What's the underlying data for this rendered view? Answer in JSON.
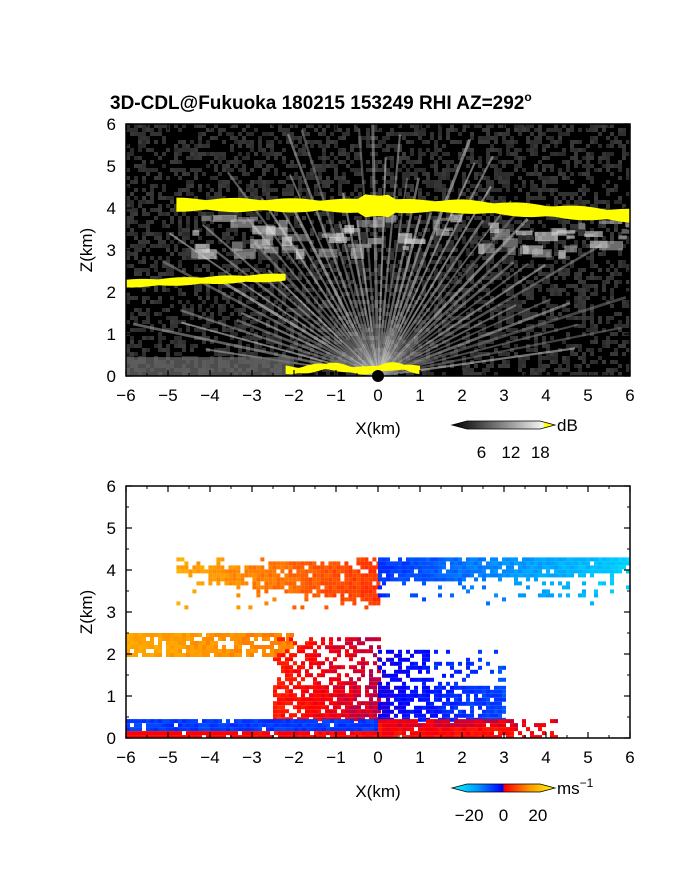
{
  "title": {
    "text": "3D-CDL@Fukuoka 180215 153249 RHI AZ=292",
    "sup": "o"
  },
  "colors": {
    "yellow": "#ffff00",
    "noise_dark": "#1c1c1c",
    "background_panel": "#000000"
  },
  "chart_data": [
    {
      "type": "heatmap",
      "name": "reflectivity-panel",
      "quantity": "backscatter intensity",
      "xlabel": "X(km)",
      "ylabel": "Z(km)",
      "xlim": [
        -6,
        6
      ],
      "ylim": [
        0,
        6
      ],
      "xticks": [
        -6,
        -5,
        -4,
        -3,
        -2,
        -1,
        0,
        1,
        2,
        3,
        4,
        5,
        6
      ],
      "yticks": [
        0,
        1,
        2,
        3,
        4,
        5,
        6
      ],
      "colorscale": [
        "#000000",
        "#3a3a3a",
        "#777777",
        "#b5b5b5",
        "#eeeeee",
        "#ffff00"
      ],
      "colorbar": {
        "unit": "dB",
        "ticks": [
          "6",
          "12",
          "18"
        ],
        "range": [
          0,
          21
        ]
      },
      "layers": [
        {
          "feature": "upper cloud layer",
          "x_range": [
            -4.8,
            6.0
          ],
          "z_center": 4.0,
          "z_thickness": 0.3,
          "value": "> 18"
        },
        {
          "feature": "lower cloud layer",
          "x_range": [
            -6.0,
            -2.2
          ],
          "z_center": 2.25,
          "z_thickness": 0.15,
          "value": "> 18"
        },
        {
          "feature": "near-surface layer",
          "x_range": [
            -2.2,
            1.0
          ],
          "z_center": 0.2,
          "z_thickness": 0.15,
          "value": "> 18"
        }
      ]
    },
    {
      "type": "heatmap",
      "name": "velocity-panel",
      "quantity": "radial velocity",
      "xlabel": "X(km)",
      "ylabel": "Z(km)",
      "xlim": [
        -6,
        6
      ],
      "ylim": [
        0,
        6
      ],
      "xticks": [
        -6,
        -5,
        -4,
        -3,
        -2,
        -1,
        0,
        1,
        2,
        3,
        4,
        5,
        6
      ],
      "yticks": [
        0,
        1,
        2,
        3,
        4,
        5,
        6
      ],
      "colorscale": [
        "#00ffff",
        "#0096ff",
        "#0000ff",
        "#ff0000",
        "#ff9600",
        "#ffff00"
      ],
      "colorbar": {
        "unit": "ms",
        "unit_sup": "−1",
        "ticks": [
          "−20",
          "0",
          "20"
        ],
        "range": [
          -30,
          30
        ]
      },
      "regions": [
        {
          "feature": "upper layer west",
          "x_range": [
            -4.8,
            0.0
          ],
          "z_range": [
            3.1,
            4.3
          ],
          "velocity_range": [
            20,
            10
          ]
        },
        {
          "feature": "upper layer east",
          "x_range": [
            0.0,
            6.0
          ],
          "z_range": [
            3.2,
            4.3
          ],
          "velocity_range": [
            -10,
            -25
          ]
        },
        {
          "feature": "mid layer west",
          "x_range": [
            -6.0,
            -2.0
          ],
          "z_range": [
            2.0,
            2.5
          ],
          "velocity_range": [
            20,
            16
          ]
        },
        {
          "feature": "lower scatter west",
          "x_range": [
            -2.5,
            0.0
          ],
          "z_range": [
            0.4,
            2.4
          ],
          "velocity_range": [
            8,
            3
          ]
        },
        {
          "feature": "lower scatter east",
          "x_range": [
            0.0,
            3.0
          ],
          "z_range": [
            0.4,
            2.1
          ],
          "velocity_range": [
            -5,
            -12
          ]
        },
        {
          "feature": "near-surface band",
          "x_range": [
            -6.0,
            4.2
          ],
          "z_range": [
            0.0,
            0.45
          ],
          "velocity_range": [
            -12,
            6
          ]
        }
      ]
    }
  ]
}
